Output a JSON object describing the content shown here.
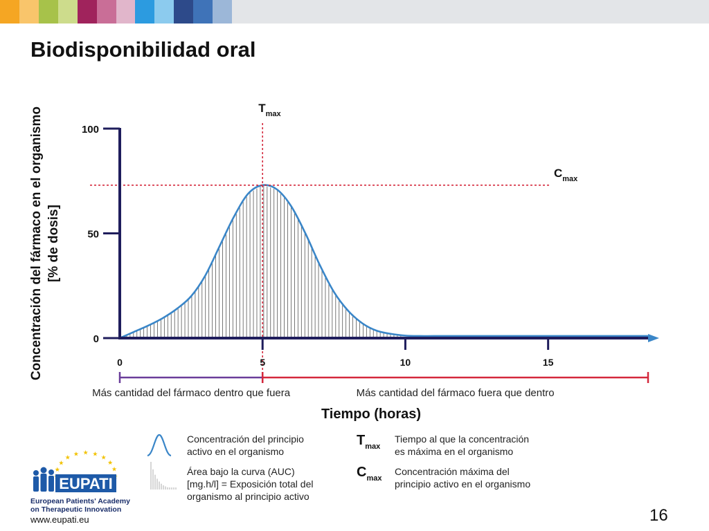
{
  "topbar": {
    "colors": [
      "#f5a623",
      "#f9c56b",
      "#a7c24a",
      "#cddc8c",
      "#a0235c",
      "#c96e97",
      "#e1b6cb",
      "#2c9be0",
      "#8ccbee",
      "#2d4a8a",
      "#3f73b8",
      "#9cb7d8"
    ]
  },
  "slide": {
    "title": "Biodisponibilidad oral",
    "page_number": "16"
  },
  "chart_data": {
    "type": "area",
    "title": "",
    "ylabel_line1": "Concentración del fármaco en el organismo",
    "ylabel_line2": "[% de dosis]",
    "xlabel": "Tiempo (horas)",
    "xlim": [
      0,
      18.5
    ],
    "ylim": [
      0,
      100
    ],
    "x_ticks": [
      "0",
      "5",
      "10",
      "15"
    ],
    "y_ticks": [
      "0",
      "50",
      "100"
    ],
    "series": [
      {
        "x": [
          0,
          0.5,
          1,
          1.5,
          2,
          2.5,
          3,
          3.5,
          4,
          4.5,
          5,
          5.5,
          6,
          6.5,
          7,
          7.5,
          8,
          8.5,
          9,
          9.5,
          10,
          10.5,
          11,
          12,
          13,
          14,
          15,
          16,
          17,
          18.5
        ],
        "y": [
          0,
          3,
          6,
          9.5,
          14,
          20,
          30,
          44,
          58,
          69,
          73,
          71,
          63,
          50,
          35,
          22,
          13,
          7,
          3.5,
          2,
          1.2,
          1,
          1,
          1,
          1,
          1,
          1,
          1,
          1,
          1
        ]
      }
    ],
    "tmax": {
      "x": 5,
      "label": "T",
      "sub": "max"
    },
    "cmax": {
      "y": 73,
      "label": "C",
      "sub": "max"
    },
    "ranges": [
      {
        "from": 0,
        "to": 5,
        "label": "Más cantidad del fármaco dentro que fuera",
        "color": "#6a3d9a"
      },
      {
        "from": 5,
        "to": 18.5,
        "label": "Más cantidad del fármaco fuera que dentro",
        "color": "#d4283c"
      }
    ],
    "colors": {
      "axis": "#1f1d5c",
      "curve": "#3a86c8",
      "hatch": "#555555",
      "reference": "#d4283c"
    }
  },
  "legend": {
    "curve_text": [
      "Concentración del principio",
      "activo en el organismo"
    ],
    "auc_text": [
      "Área bajo la curva (AUC)",
      "[mg.h/l] = Exposición total del",
      "organismo al principio activo"
    ],
    "tmax_symbol": "T",
    "tmax_sub": "max",
    "tmax_text": [
      "Tiempo al que la concentración",
      "es máxima en el organismo"
    ],
    "cmax_symbol": "C",
    "cmax_sub": "max",
    "cmax_text": [
      "Concentración máxima del",
      "principio activo en el organismo"
    ]
  },
  "logo": {
    "name": "EUPATI",
    "line1": "European Patients' Academy",
    "line2": "on Therapeutic Innovation",
    "url": "www.eupati.eu",
    "colors": {
      "blue": "#1e5aa8",
      "star": "#f2c200"
    }
  }
}
